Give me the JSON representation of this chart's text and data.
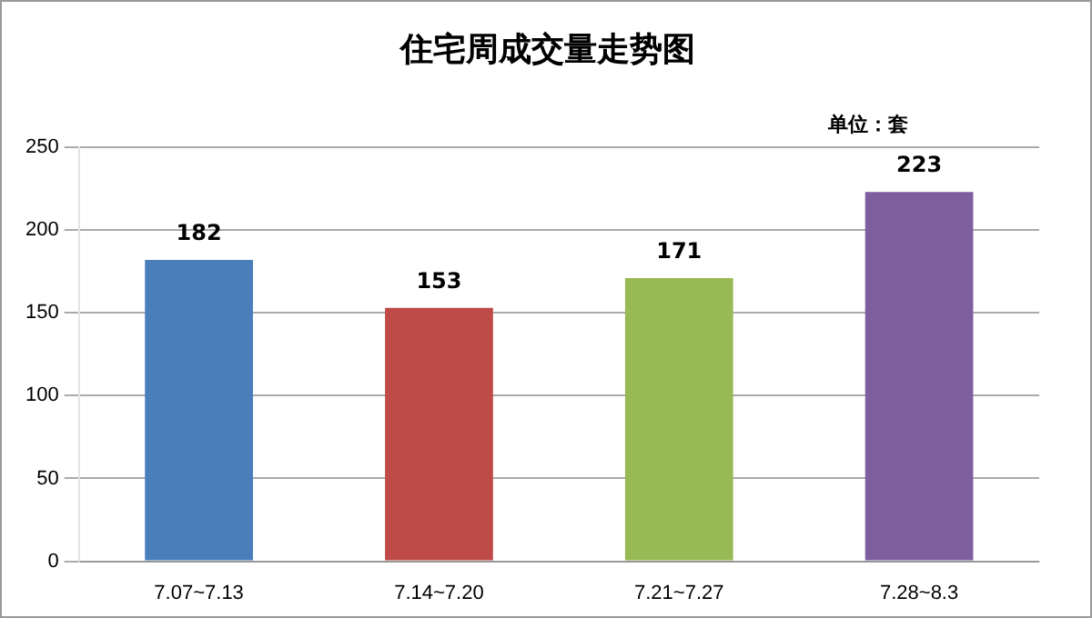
{
  "chart_data": {
    "type": "bar",
    "title": "住宅周成交量走势图",
    "annotations": [
      "单位：套"
    ],
    "categories": [
      "7.07~7.13",
      "7.14~7.20",
      "7.21~7.27",
      "7.28~8.3"
    ],
    "values": [
      182,
      153,
      171,
      223
    ],
    "colors": [
      "#4a7ebb",
      "#be4b48",
      "#98b954",
      "#7d5fa0"
    ],
    "ylim": [
      0,
      250
    ],
    "yticks": [
      0,
      50,
      100,
      150,
      200,
      250
    ],
    "grid": "y",
    "data_labels": true
  }
}
